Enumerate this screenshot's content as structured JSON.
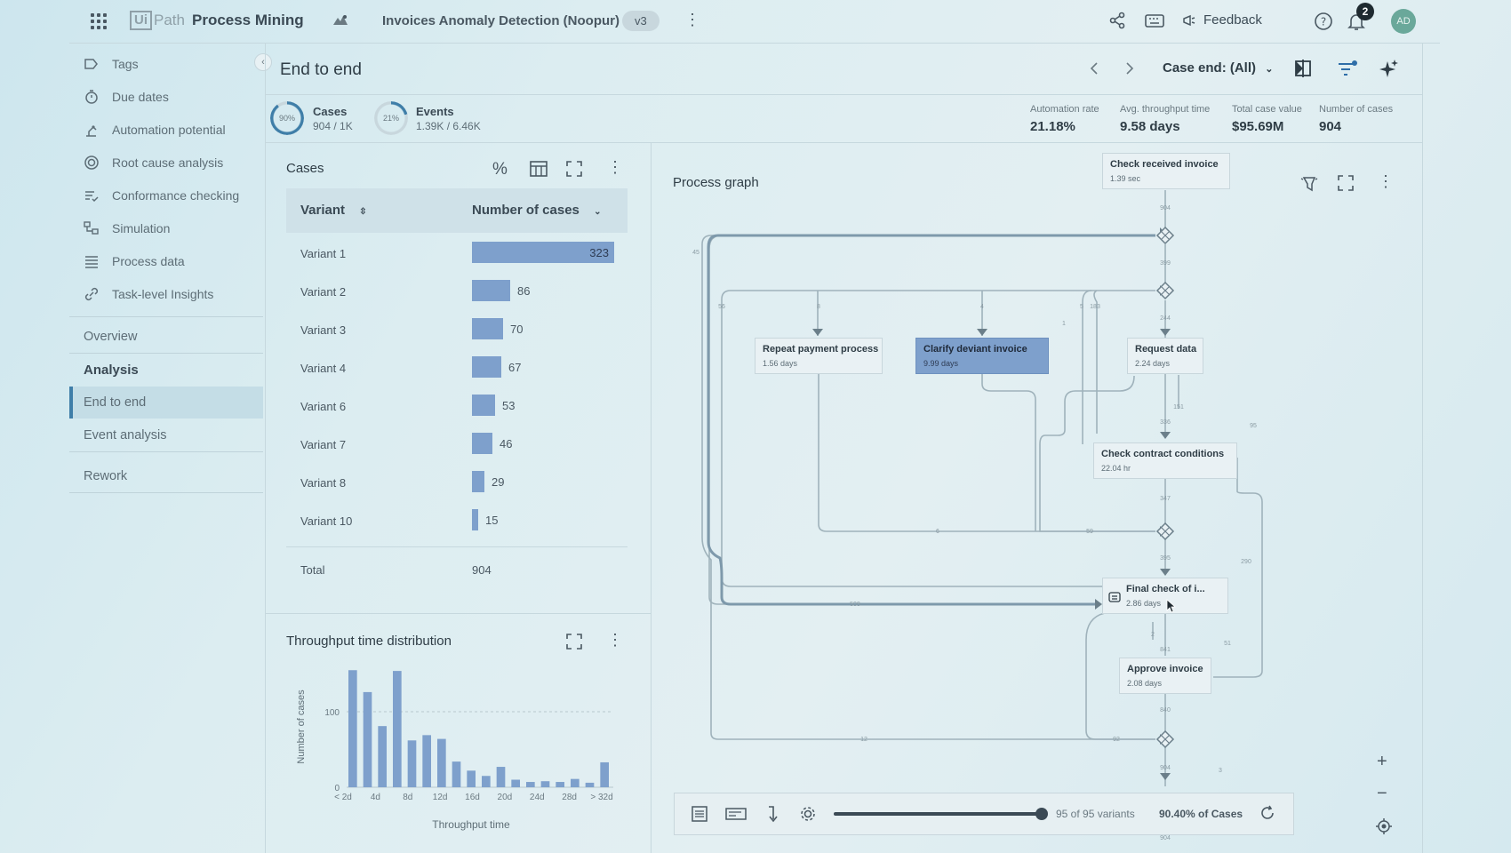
{
  "topbar": {
    "logo_ui": "Ui",
    "logo_path": "Path",
    "app_name": "Process Mining",
    "project_title": "Invoices Anomaly Detection (Noopur)",
    "version": "v3",
    "feedback": "Feedback",
    "notifications": "2",
    "avatar": "AD"
  },
  "sidebar": {
    "items": [
      {
        "label": "Tags",
        "icon": "tag-icon"
      },
      {
        "label": "Due dates",
        "icon": "stopwatch-icon"
      },
      {
        "label": "Automation potential",
        "icon": "robot-arm-icon"
      },
      {
        "label": "Root cause analysis",
        "icon": "target-icon"
      },
      {
        "label": "Conformance checking",
        "icon": "list-check-icon"
      },
      {
        "label": "Simulation",
        "icon": "flow-icon"
      },
      {
        "label": "Process data",
        "icon": "lines-icon"
      },
      {
        "label": "Task-level Insights",
        "icon": "link-icon"
      }
    ],
    "overview": "Overview",
    "analysis": "Analysis",
    "end_to_end": "End to end",
    "event_analysis": "Event analysis",
    "rework": "Rework"
  },
  "header": {
    "title": "End to end",
    "case_end": "Case end: (All)"
  },
  "stats": {
    "cases_pct": "90%",
    "cases_pct_value": 0.9,
    "cases_label": "Cases",
    "cases_value": "904 / 1K",
    "events_pct": "21%",
    "events_pct_value": 0.21,
    "events_label": "Events",
    "events_value": "1.39K / 6.46K"
  },
  "kpis": [
    {
      "label": "Automation rate",
      "value": "21.18%"
    },
    {
      "label": "Avg. throughput time",
      "value": "9.58 days"
    },
    {
      "label": "Total case value",
      "value": "$95.69M"
    },
    {
      "label": "Number of cases",
      "value": "904"
    }
  ],
  "cases_panel": {
    "title": "Cases",
    "col_variant": "Variant",
    "col_cases": "Number of cases",
    "rows": [
      {
        "label": "Variant 1",
        "value": "323",
        "n": 323
      },
      {
        "label": "Variant 2",
        "value": "86",
        "n": 86
      },
      {
        "label": "Variant 3",
        "value": "70",
        "n": 70
      },
      {
        "label": "Variant 4",
        "value": "67",
        "n": 67
      },
      {
        "label": "Variant 6",
        "value": "53",
        "n": 53
      },
      {
        "label": "Variant 7",
        "value": "46",
        "n": 46
      },
      {
        "label": "Variant 8",
        "value": "29",
        "n": 29
      },
      {
        "label": "Variant 10",
        "value": "15",
        "n": 15
      }
    ],
    "total_label": "Total",
    "total_value": "904"
  },
  "throughput": {
    "title": "Throughput time distribution"
  },
  "chart_data": {
    "type": "bar",
    "title": "",
    "xlabel": "Throughput time",
    "ylabel": "Number of cases",
    "ylim": [
      0,
      160
    ],
    "y_ticks": [
      "0",
      "100"
    ],
    "x_tick_labels": [
      "< 2d",
      "4d",
      "8d",
      "12d",
      "16d",
      "20d",
      "24d",
      "28d",
      "> 32d"
    ],
    "values": [
      155,
      126,
      81,
      154,
      62,
      69,
      64,
      34,
      22,
      15,
      27,
      10,
      7,
      8,
      7,
      11,
      6,
      33
    ],
    "grid": "dashed line at 100"
  },
  "process_graph": {
    "title": "Process graph",
    "nodes": [
      {
        "id": "check-received",
        "title": "Check received invoice",
        "value": "1.39 sec"
      },
      {
        "id": "repeat-payment",
        "title": "Repeat payment process",
        "value": "1.56 days"
      },
      {
        "id": "clarify-deviant",
        "title": "Clarify deviant invoice",
        "value": "9.99 days"
      },
      {
        "id": "request-data",
        "title": "Request data",
        "value": "2.24 days"
      },
      {
        "id": "check-contract",
        "title": "Check contract conditions",
        "value": "22.04 hr"
      },
      {
        "id": "final-check",
        "title": "Final check of i...",
        "value": "2.86 days"
      },
      {
        "id": "approve-invoice",
        "title": "Approve invoice",
        "value": "2.08 days"
      }
    ],
    "edge_labels": [
      "904",
      "399",
      "244",
      "45",
      "56",
      "8",
      "4",
      "5",
      "183",
      "1",
      "151",
      "336",
      "95",
      "347",
      "6",
      "59",
      "395",
      "509",
      "290",
      "2",
      "841",
      "51",
      "840",
      "12",
      "92",
      "904",
      "3",
      "904"
    ],
    "variants_text": "95 of 95 variants",
    "variants_fraction": 1.0,
    "cases_pct_text": "90.40% of Cases"
  }
}
